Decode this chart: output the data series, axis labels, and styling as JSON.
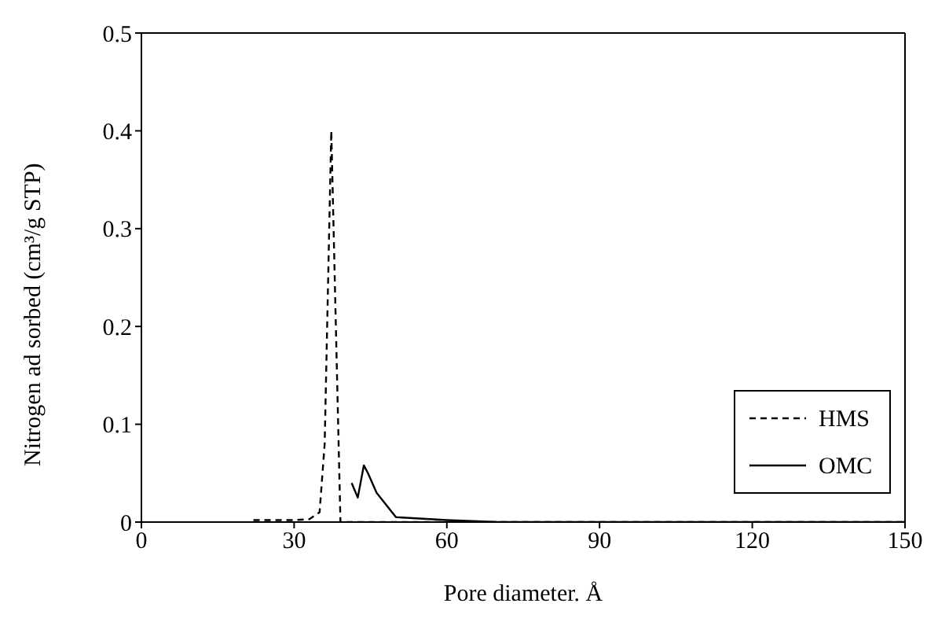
{
  "chart_data": {
    "type": "line",
    "xlabel": "Pore diameter. Å",
    "ylabel": "Nitrogen ad sorbed (cm³/g STP)",
    "xlim": [
      0,
      150
    ],
    "xticks": [
      0,
      30,
      60,
      90,
      120,
      150
    ],
    "ylim": [
      0,
      0.5
    ],
    "yticks": [
      0,
      0.1,
      0.2,
      0.3,
      0.4,
      0.5
    ],
    "legend": "bottom right",
    "marker": "none",
    "series": [
      {
        "name": "HMS",
        "color": "#000000",
        "line_style": "dashed",
        "x": [
          22,
          30,
          33,
          35,
          36,
          37.3,
          39.1,
          45,
          60,
          90,
          120,
          150
        ],
        "values": [
          0.002,
          0.002,
          0.003,
          0.01,
          0.08,
          0.4,
          0,
          0,
          0,
          0,
          0,
          0
        ]
      },
      {
        "name": "OMC",
        "color": "#000000",
        "line_style": "solid",
        "x": [
          41.3,
          42.5,
          43.7,
          44.5,
          46.2,
          50,
          60,
          70,
          90,
          120,
          150
        ],
        "values": [
          0.04,
          0.025,
          0.058,
          0.05,
          0.03,
          0.005,
          0.002,
          0,
          0,
          0,
          0
        ]
      }
    ]
  }
}
